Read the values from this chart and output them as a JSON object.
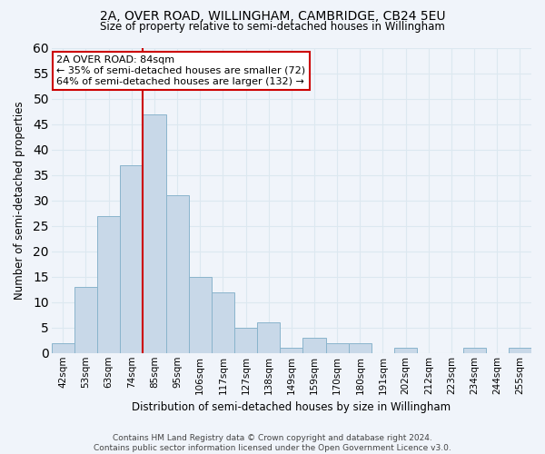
{
  "title": "2A, OVER ROAD, WILLINGHAM, CAMBRIDGE, CB24 5EU",
  "subtitle": "Size of property relative to semi-detached houses in Willingham",
  "xlabel": "Distribution of semi-detached houses by size in Willingham",
  "ylabel": "Number of semi-detached properties",
  "footer_line1": "Contains HM Land Registry data © Crown copyright and database right 2024.",
  "footer_line2": "Contains public sector information licensed under the Open Government Licence v3.0.",
  "bin_labels": [
    "42sqm",
    "53sqm",
    "63sqm",
    "74sqm",
    "85sqm",
    "95sqm",
    "106sqm",
    "117sqm",
    "127sqm",
    "138sqm",
    "149sqm",
    "159sqm",
    "170sqm",
    "180sqm",
    "191sqm",
    "202sqm",
    "212sqm",
    "223sqm",
    "234sqm",
    "244sqm",
    "255sqm"
  ],
  "bin_counts": [
    2,
    13,
    27,
    37,
    47,
    31,
    15,
    12,
    5,
    6,
    1,
    3,
    2,
    2,
    0,
    1,
    0,
    0,
    1,
    0,
    1
  ],
  "bar_color": "#c8d8e8",
  "bar_edge_color": "#8ab4cc",
  "property_line_bin": 4,
  "property_label": "2A OVER ROAD: 84sqm",
  "pct_smaller": 35,
  "pct_larger": 64,
  "n_smaller": 72,
  "n_larger": 132,
  "line_color": "#cc0000",
  "box_edge_color": "#cc0000",
  "ylim_min": 0,
  "ylim_max": 60,
  "yticks": [
    0,
    5,
    10,
    15,
    20,
    25,
    30,
    35,
    40,
    45,
    50,
    55,
    60
  ],
  "grid_color": "#dce8f0",
  "background_color": "#f0f4fa",
  "title_fontsize": 10,
  "subtitle_fontsize": 8.5,
  "axis_label_fontsize": 8.5,
  "tick_fontsize": 7.5,
  "annotation_fontsize": 8,
  "footer_fontsize": 6.5
}
